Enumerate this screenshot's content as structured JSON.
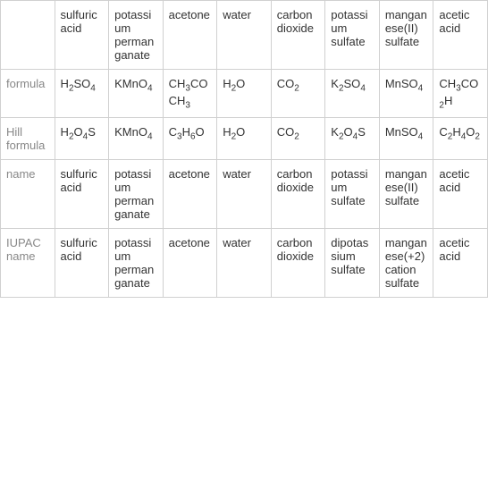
{
  "table": {
    "columns": [
      "",
      "sulfuric acid",
      "potassium permanganate",
      "acetone",
      "water",
      "carbon dioxide",
      "potassium sulfate",
      "manganese(II) sulfate",
      "acetic acid"
    ],
    "rows": [
      {
        "label": "formula",
        "cells": [
          {
            "type": "formula",
            "parts": [
              {
                "t": "H"
              },
              {
                "s": "2"
              },
              {
                "t": "SO"
              },
              {
                "s": "4"
              }
            ]
          },
          {
            "type": "formula",
            "parts": [
              {
                "t": "KMnO"
              },
              {
                "s": "4"
              }
            ]
          },
          {
            "type": "formula",
            "parts": [
              {
                "t": "CH"
              },
              {
                "s": "3"
              },
              {
                "t": "COCH"
              },
              {
                "s": "3"
              }
            ]
          },
          {
            "type": "formula",
            "parts": [
              {
                "t": "H"
              },
              {
                "s": "2"
              },
              {
                "t": "O"
              }
            ]
          },
          {
            "type": "formula",
            "parts": [
              {
                "t": "CO"
              },
              {
                "s": "2"
              }
            ]
          },
          {
            "type": "formula",
            "parts": [
              {
                "t": "K"
              },
              {
                "s": "2"
              },
              {
                "t": "SO"
              },
              {
                "s": "4"
              }
            ]
          },
          {
            "type": "formula",
            "parts": [
              {
                "t": "MnSO"
              },
              {
                "s": "4"
              }
            ]
          },
          {
            "type": "formula",
            "parts": [
              {
                "t": "CH"
              },
              {
                "s": "3"
              },
              {
                "t": "CO"
              },
              {
                "s": "2"
              },
              {
                "t": "H"
              }
            ]
          }
        ]
      },
      {
        "label": "Hill formula",
        "cells": [
          {
            "type": "formula",
            "parts": [
              {
                "t": "H"
              },
              {
                "s": "2"
              },
              {
                "t": "O"
              },
              {
                "s": "4"
              },
              {
                "t": "S"
              }
            ]
          },
          {
            "type": "formula",
            "parts": [
              {
                "t": "KMnO"
              },
              {
                "s": "4"
              }
            ]
          },
          {
            "type": "formula",
            "parts": [
              {
                "t": "C"
              },
              {
                "s": "3"
              },
              {
                "t": "H"
              },
              {
                "s": "6"
              },
              {
                "t": "O"
              }
            ]
          },
          {
            "type": "formula",
            "parts": [
              {
                "t": "H"
              },
              {
                "s": "2"
              },
              {
                "t": "O"
              }
            ]
          },
          {
            "type": "formula",
            "parts": [
              {
                "t": "CO"
              },
              {
                "s": "2"
              }
            ]
          },
          {
            "type": "formula",
            "parts": [
              {
                "t": "K"
              },
              {
                "s": "2"
              },
              {
                "t": "O"
              },
              {
                "s": "4"
              },
              {
                "t": "S"
              }
            ]
          },
          {
            "type": "formula",
            "parts": [
              {
                "t": "MnSO"
              },
              {
                "s": "4"
              }
            ]
          },
          {
            "type": "formula",
            "parts": [
              {
                "t": "C"
              },
              {
                "s": "2"
              },
              {
                "t": "H"
              },
              {
                "s": "4"
              },
              {
                "t": "O"
              },
              {
                "s": "2"
              }
            ]
          }
        ]
      },
      {
        "label": "name",
        "cells": [
          {
            "type": "text",
            "value": "sulfuric acid"
          },
          {
            "type": "text",
            "value": "potassium permanganate"
          },
          {
            "type": "text",
            "value": "acetone"
          },
          {
            "type": "text",
            "value": "water"
          },
          {
            "type": "text",
            "value": "carbon dioxide"
          },
          {
            "type": "text",
            "value": "potassium sulfate"
          },
          {
            "type": "text",
            "value": "manganese(II) sulfate"
          },
          {
            "type": "text",
            "value": "acetic acid"
          }
        ]
      },
      {
        "label": "IUPAC name",
        "cells": [
          {
            "type": "text",
            "value": "sulfuric acid"
          },
          {
            "type": "text",
            "value": "potassium permanganate"
          },
          {
            "type": "text",
            "value": "acetone"
          },
          {
            "type": "text",
            "value": "water"
          },
          {
            "type": "text",
            "value": "carbon dioxide"
          },
          {
            "type": "text",
            "value": "dipotassium sulfate"
          },
          {
            "type": "text",
            "value": "manganese(+2) cation sulfate"
          },
          {
            "type": "text",
            "value": "acetic acid"
          }
        ]
      }
    ],
    "styles": {
      "border_color": "#d0d0d0",
      "text_color": "#333333",
      "label_color": "#888888",
      "background_color": "#ffffff",
      "font_size": 13,
      "sub_font_size": 10,
      "cell_padding": "8px 6px"
    }
  }
}
